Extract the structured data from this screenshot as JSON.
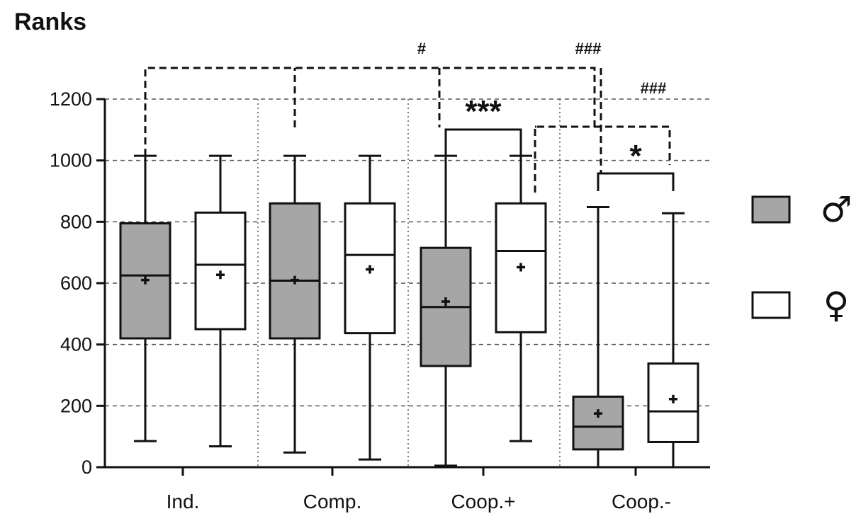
{
  "chart_data": {
    "type": "box",
    "title": "Ranks",
    "ylim": [
      0,
      1200
    ],
    "y_ticks": [
      0,
      200,
      400,
      600,
      800,
      1000,
      1200
    ],
    "grid": "horizontal dashed, vertical dotted separators",
    "categories": [
      "Ind.",
      "Comp.",
      "Coop.+",
      "Coop.-"
    ],
    "legend": {
      "placement": "right",
      "entries": [
        {
          "symbol": "♂",
          "fill": "#a6a6a6"
        },
        {
          "symbol": "♀",
          "fill": "#ffffff"
        }
      ]
    },
    "boxes": [
      {
        "category": "Ind.",
        "group": "♂",
        "min": 85,
        "q1": 420,
        "median": 625,
        "q3": 795,
        "max": 1015,
        "mean": 610
      },
      {
        "category": "Ind.",
        "group": "♀",
        "min": 68,
        "q1": 450,
        "median": 660,
        "q3": 830,
        "max": 1015,
        "mean": 627
      },
      {
        "category": "Comp.",
        "group": "♂",
        "min": 48,
        "q1": 420,
        "median": 608,
        "q3": 860,
        "max": 1015,
        "mean": 610
      },
      {
        "category": "Comp.",
        "group": "♀",
        "min": 25,
        "q1": 437,
        "median": 692,
        "q3": 860,
        "max": 1015,
        "mean": 645
      },
      {
        "category": "Coop.+",
        "group": "♂",
        "min": 5,
        "q1": 330,
        "median": 522,
        "q3": 715,
        "max": 1015,
        "mean": 540
      },
      {
        "category": "Coop.+",
        "group": "♀",
        "min": 85,
        "q1": 440,
        "median": 705,
        "q3": 860,
        "max": 1015,
        "mean": 652
      },
      {
        "category": "Coop.-",
        "group": "♂",
        "min": 0,
        "q1": 58,
        "median": 132,
        "q3": 230,
        "max": 848,
        "mean": 175
      },
      {
        "category": "Coop.-",
        "group": "♀",
        "min": 0,
        "q1": 82,
        "median": 182,
        "q3": 338,
        "max": 828,
        "mean": 222
      }
    ],
    "annotations": [
      {
        "text": "#",
        "style": "dashed",
        "from": "Ind. ♂",
        "to": "Coop.- ♂"
      },
      {
        "text": "###",
        "style": "dashed",
        "from": "Comp. ♂",
        "to": "Coop.- ♂"
      },
      {
        "text": "***",
        "style": "solid",
        "from": "Coop.+ ♂",
        "to": "Coop.+ ♀"
      },
      {
        "text": "###",
        "style": "dashed",
        "from": "Coop.+ ♀",
        "to": "Coop.- ♀"
      },
      {
        "text": "*",
        "style": "solid",
        "from": "Coop.- ♂",
        "to": "Coop.- ♀"
      }
    ]
  }
}
